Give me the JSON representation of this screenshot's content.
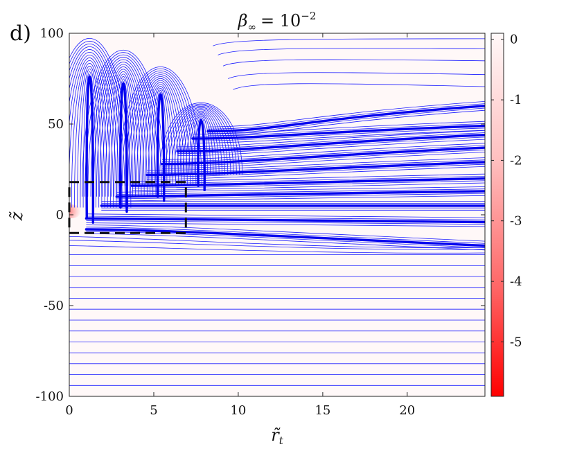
{
  "panel_label": "d)",
  "chart_data": {
    "type": "contour",
    "title": {
      "symbol": "β",
      "sub": "∞",
      "rel": "= 10",
      "sup": "−2"
    },
    "xlabel": {
      "symbol": "r̃",
      "sub": "t"
    },
    "ylabel": "z̃",
    "xlim": [
      0,
      24.6
    ],
    "ylim": [
      -100,
      100
    ],
    "xticks": [
      0,
      5,
      10,
      15,
      20
    ],
    "xtick_labels": [
      "0",
      "5",
      "10",
      "15",
      "20"
    ],
    "yticks": [
      100,
      50,
      0,
      -50,
      -100
    ],
    "ytick_labels": [
      "100",
      "50",
      "0",
      "-50",
      "-100"
    ],
    "colorbar": {
      "ticks": [
        0,
        -1,
        -2,
        -3,
        -4,
        -5
      ],
      "tick_labels": [
        "0",
        "-1",
        "-2",
        "-3",
        "-4",
        "-5"
      ],
      "range": [
        -5.9,
        0.1
      ],
      "colors": {
        "low": "#ff0000",
        "high": "#fff8f8"
      }
    },
    "line_color": "#0000ff",
    "wake_fingers": [
      {
        "x": 1.2,
        "z_top": 101
      },
      {
        "x": 3.2,
        "z_top": 94
      },
      {
        "x": 5.4,
        "z_top": 84
      },
      {
        "x": 7.8,
        "z_top": 63
      }
    ],
    "inset_box": {
      "x": [
        0,
        6.9
      ],
      "z": [
        -10,
        18
      ]
    },
    "source_point": {
      "x": 0.2,
      "z": 2
    }
  }
}
